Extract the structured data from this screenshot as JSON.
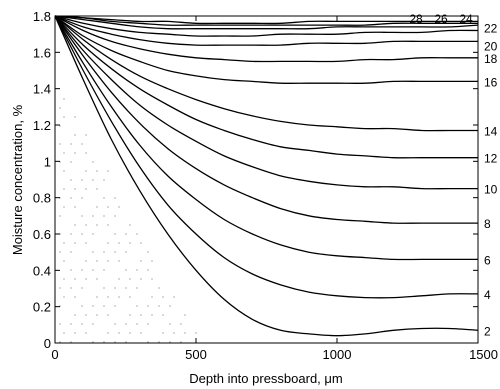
{
  "chart_data": {
    "type": "line",
    "xlabel": "Depth into pressboard, μm",
    "ylabel": "Moisture concentration, %",
    "xlim": [
      0,
      1500
    ],
    "ylim": [
      0,
      1.8
    ],
    "xticks": [
      "0",
      "500",
      "1000",
      "1500"
    ],
    "yticks": [
      "0",
      "0.2",
      "0.4",
      "0.6",
      "0.8",
      "1",
      "1.2",
      "1.4",
      "1.6",
      "1.8"
    ],
    "grid": false,
    "legend": "none",
    "x": [
      0,
      100,
      200,
      300,
      400,
      500,
      600,
      700,
      800,
      900,
      1000,
      1100,
      1200,
      1300,
      1400,
      1500
    ],
    "series": [
      {
        "name": "2",
        "values": [
          1.8,
          1.45,
          1.12,
          0.84,
          0.6,
          0.4,
          0.24,
          0.13,
          0.07,
          0.05,
          0.04,
          0.05,
          0.07,
          0.08,
          0.08,
          0.07
        ]
      },
      {
        "name": "4",
        "values": [
          1.8,
          1.5,
          1.22,
          0.97,
          0.76,
          0.6,
          0.47,
          0.38,
          0.32,
          0.28,
          0.26,
          0.25,
          0.25,
          0.26,
          0.27,
          0.27
        ]
      },
      {
        "name": "6",
        "values": [
          1.8,
          1.54,
          1.3,
          1.09,
          0.92,
          0.79,
          0.68,
          0.6,
          0.54,
          0.5,
          0.48,
          0.47,
          0.46,
          0.46,
          0.46,
          0.46
        ]
      },
      {
        "name": "8",
        "values": [
          1.8,
          1.58,
          1.38,
          1.21,
          1.07,
          0.96,
          0.87,
          0.8,
          0.74,
          0.7,
          0.68,
          0.67,
          0.66,
          0.66,
          0.66,
          0.66
        ]
      },
      {
        "name": "10",
        "values": [
          1.8,
          1.61,
          1.45,
          1.31,
          1.2,
          1.11,
          1.03,
          0.97,
          0.92,
          0.89,
          0.87,
          0.86,
          0.86,
          0.85,
          0.85,
          0.85
        ]
      },
      {
        "name": "12",
        "values": [
          1.8,
          1.64,
          1.51,
          1.4,
          1.31,
          1.23,
          1.17,
          1.12,
          1.08,
          1.06,
          1.04,
          1.03,
          1.02,
          1.02,
          1.02,
          1.02
        ]
      },
      {
        "name": "14",
        "values": [
          1.8,
          1.67,
          1.56,
          1.47,
          1.4,
          1.34,
          1.29,
          1.25,
          1.22,
          1.2,
          1.19,
          1.18,
          1.18,
          1.17,
          1.17,
          1.17
        ]
      },
      {
        "name": "16",
        "values": [
          1.8,
          1.69,
          1.61,
          1.55,
          1.5,
          1.47,
          1.45,
          1.44,
          1.43,
          1.43,
          1.43,
          1.43,
          1.44,
          1.44,
          1.44,
          1.44
        ]
      },
      {
        "name": "18",
        "values": [
          1.8,
          1.72,
          1.66,
          1.62,
          1.59,
          1.57,
          1.56,
          1.55,
          1.55,
          1.55,
          1.55,
          1.56,
          1.56,
          1.57,
          1.57,
          1.57
        ]
      },
      {
        "name": "20",
        "values": [
          1.8,
          1.74,
          1.7,
          1.67,
          1.65,
          1.64,
          1.64,
          1.64,
          1.64,
          1.65,
          1.65,
          1.65,
          1.66,
          1.66,
          1.66,
          1.66
        ]
      },
      {
        "name": "22",
        "values": [
          1.8,
          1.76,
          1.73,
          1.71,
          1.7,
          1.69,
          1.69,
          1.69,
          1.7,
          1.7,
          1.7,
          1.71,
          1.71,
          1.71,
          1.72,
          1.72
        ]
      },
      {
        "name": "24",
        "values": [
          1.8,
          1.78,
          1.76,
          1.74,
          1.73,
          1.73,
          1.73,
          1.73,
          1.73,
          1.73,
          1.74,
          1.74,
          1.74,
          1.74,
          1.74,
          1.75
        ]
      },
      {
        "name": "26",
        "values": [
          1.8,
          1.79,
          1.77,
          1.76,
          1.75,
          1.75,
          1.75,
          1.75,
          1.75,
          1.75,
          1.75,
          1.75,
          1.76,
          1.76,
          1.76,
          1.76
        ]
      },
      {
        "name": "28",
        "values": [
          1.8,
          1.79,
          1.78,
          1.77,
          1.77,
          1.76,
          1.76,
          1.76,
          1.76,
          1.77,
          1.77,
          1.77,
          1.77,
          1.77,
          1.77,
          1.77
        ]
      }
    ]
  }
}
